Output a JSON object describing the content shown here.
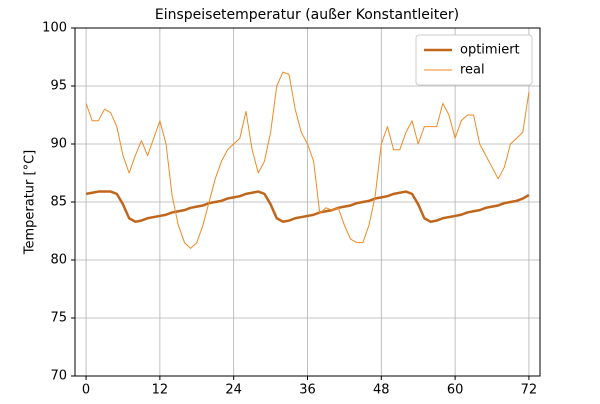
{
  "chart_data": {
    "type": "line",
    "title": "Einspeisetemperatur (außer Konstantleiter)",
    "y_label": "Temperatur [°C]",
    "x": [
      0,
      1,
      2,
      3,
      4,
      5,
      6,
      7,
      8,
      9,
      10,
      11,
      12,
      13,
      14,
      15,
      16,
      17,
      18,
      19,
      20,
      21,
      22,
      23,
      24,
      25,
      26,
      27,
      28,
      29,
      30,
      31,
      32,
      33,
      34,
      35,
      36,
      37,
      38,
      39,
      40,
      41,
      42,
      43,
      44,
      45,
      46,
      47,
      48,
      49,
      50,
      51,
      52,
      53,
      54,
      55,
      56,
      57,
      58,
      59,
      60,
      61,
      62,
      63,
      64,
      65,
      66,
      67,
      68,
      69,
      70,
      71,
      72
    ],
    "series": [
      {
        "name": "optimiert",
        "color": "#c0661c",
        "width": 2.5,
        "values": [
          85.7,
          85.8,
          85.9,
          85.9,
          85.9,
          85.7,
          84.8,
          83.6,
          83.3,
          83.4,
          83.6,
          83.7,
          83.8,
          83.9,
          84.1,
          84.2,
          84.3,
          84.5,
          84.6,
          84.7,
          84.9,
          85.0,
          85.1,
          85.3,
          85.4,
          85.5,
          85.7,
          85.8,
          85.9,
          85.7,
          84.8,
          83.6,
          83.3,
          83.4,
          83.6,
          83.7,
          83.8,
          83.9,
          84.1,
          84.2,
          84.3,
          84.5,
          84.6,
          84.7,
          84.9,
          85.0,
          85.1,
          85.3,
          85.4,
          85.5,
          85.7,
          85.8,
          85.9,
          85.7,
          84.8,
          83.6,
          83.3,
          83.4,
          83.6,
          83.7,
          83.8,
          83.9,
          84.1,
          84.2,
          84.3,
          84.5,
          84.6,
          84.7,
          84.9,
          85.0,
          85.1,
          85.3,
          85.6
        ]
      },
      {
        "name": "real",
        "color": "#f08a24",
        "width": 1,
        "values": [
          93.5,
          92,
          92,
          93,
          92.7,
          91.5,
          89,
          87.5,
          89,
          90.3,
          89,
          90.5,
          92,
          90,
          85.5,
          83,
          81.5,
          81,
          81.5,
          83,
          85,
          87,
          88.5,
          89.5,
          90,
          90.5,
          92.8,
          89.5,
          87.5,
          88.5,
          91,
          95,
          96.2,
          96,
          93,
          91,
          90,
          88.5,
          84,
          84.5,
          84.3,
          84.5,
          83,
          81.8,
          81.5,
          81.5,
          83,
          85.5,
          90,
          91.5,
          89.5,
          89.5,
          91,
          92,
          90,
          91.5,
          91.5,
          91.5,
          93.5,
          92.5,
          90.5,
          92,
          92.5,
          92.5,
          90,
          89,
          88,
          87,
          88,
          90,
          90.5,
          91,
          94.5
        ]
      }
    ],
    "xlim": [
      -1.8,
      73.8
    ],
    "ylim": [
      70,
      100
    ],
    "xticks": [
      0,
      12,
      24,
      36,
      48,
      60,
      72
    ],
    "yticks": [
      70,
      75,
      80,
      85,
      90,
      95,
      100
    ],
    "grid": true,
    "legend": "upper right"
  }
}
